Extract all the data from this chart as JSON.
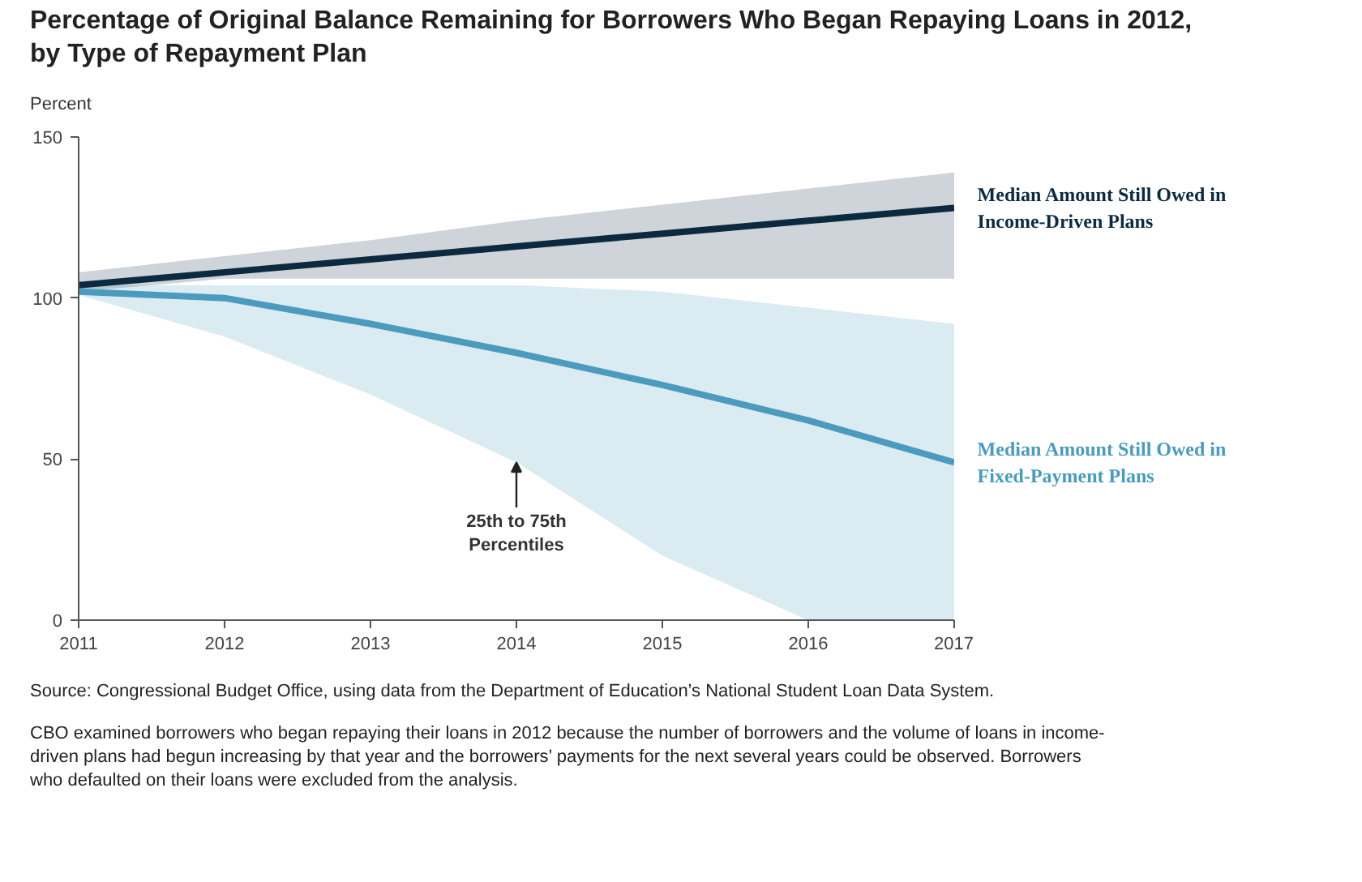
{
  "chart_data": {
    "type": "line",
    "title": "Percentage of Original Balance Remaining for Borrowers Who Began Repaying Loans in 2012, by Type of Repayment Plan",
    "ylabel": "Percent",
    "x": [
      2011,
      2012,
      2013,
      2014,
      2015,
      2016,
      2017
    ],
    "series": [
      {
        "name": "Median Amount Still Owed in Income-Driven Plans",
        "color": "#0c2a3f",
        "values": [
          104,
          108,
          112,
          116,
          120,
          124,
          128
        ],
        "lower": [
          102,
          106,
          106,
          106,
          106,
          106,
          106
        ],
        "upper": [
          108,
          113,
          118,
          124,
          129,
          134,
          139
        ]
      },
      {
        "name": "Median Amount Still Owed in Fixed-Payment Plans",
        "color": "#4a9bbd",
        "values": [
          102,
          100,
          92,
          83,
          73,
          62,
          49
        ],
        "lower": [
          101,
          88,
          70,
          49,
          20,
          0,
          0
        ],
        "upper": [
          104,
          104,
          104,
          104,
          102,
          97,
          92
        ]
      }
    ],
    "xlim": [
      2011,
      2017
    ],
    "ylim": [
      0,
      150
    ],
    "xticks": [
      2011,
      2012,
      2013,
      2014,
      2015,
      2016,
      2017
    ],
    "yticks": [
      0,
      50,
      100,
      150
    ],
    "grid": false,
    "annotations": [
      {
        "text": "25th to 75th Percentiles",
        "x": 2014,
        "y": 49
      },
      "Source: Congressional Budget Office, using data from the Department of Education’s National Student Loan Data System.",
      "CBO examined borrowers who began repaying their loans in 2012 because the number of borrowers and the volume of loans in income-driven plans had begun increasing by that year and the borrowers’ payments for the next several years could be observed. Borrowers who defaulted on their loans were excluded from the analysis."
    ]
  }
}
